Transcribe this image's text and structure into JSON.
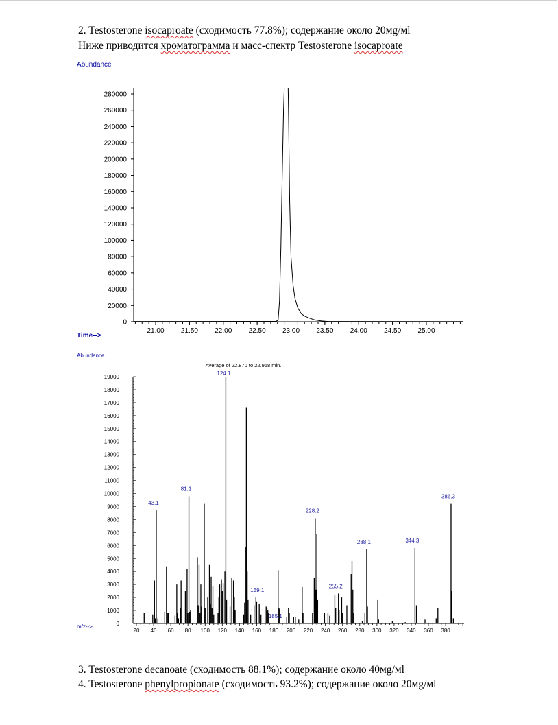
{
  "text": {
    "line1": {
      "a": "2. Testosterone ",
      "b": "isocaproate",
      "c": " (сходимость 77.8%); содержание около 20мg/мl"
    },
    "line2": {
      "a": "Ниже приводится ",
      "b": "хроматограмма",
      "c": " и масс-спектр Testosterone ",
      "d": "isocaproate"
    },
    "line3": "3. Testosterone decanoate (сходимость 88.1%); содержание около 40мg/мl",
    "line4": {
      "a": "4. Testosterone ",
      "b": "phenylpropionate",
      "c": " (сходимость 93.2%); содержание около 20мg/мl"
    }
  },
  "colors": {
    "axis_label": "#0000a0",
    "peak_label": "#2020a0",
    "trace": "#000000",
    "spellcheck": "#dd3333"
  },
  "chart_data": [
    {
      "type": "line",
      "title": "",
      "ylabel": "Abundance",
      "xlabel": "Time-->",
      "xlim": [
        20.68,
        25.55
      ],
      "ylim": [
        0,
        290000
      ],
      "xticks": [
        "21.00",
        "21.50",
        "22.00",
        "22.50",
        "23.00",
        "23.50",
        "24.00",
        "24.50",
        "25.00"
      ],
      "yticks": [
        "0",
        "20000",
        "40000",
        "60000",
        "80000",
        "100000",
        "120000",
        "140000",
        "160000",
        "180000",
        "200000",
        "220000",
        "240000",
        "260000",
        "280000"
      ],
      "grid": false,
      "points": [
        [
          20.68,
          300
        ],
        [
          22.5,
          400
        ],
        [
          22.78,
          500
        ],
        [
          22.81,
          2000
        ],
        [
          22.83,
          25000
        ],
        [
          22.85,
          90000
        ],
        [
          22.87,
          180000
        ],
        [
          22.89,
          260000
        ],
        [
          22.905,
          300000
        ],
        [
          22.955,
          300000
        ],
        [
          22.965,
          250000
        ],
        [
          22.98,
          150000
        ],
        [
          23.0,
          80000
        ],
        [
          23.03,
          45000
        ],
        [
          23.06,
          28000
        ],
        [
          23.1,
          17000
        ],
        [
          23.15,
          10000
        ],
        [
          23.2,
          7000
        ],
        [
          23.27,
          4500
        ],
        [
          23.35,
          2200
        ],
        [
          23.45,
          900
        ],
        [
          23.55,
          300
        ],
        [
          25.55,
          200
        ]
      ]
    },
    {
      "type": "bar",
      "title": "Average of 22.870  to 22.968  min.",
      "ylabel": "Abundance",
      "xlabel": "m/z-->",
      "xlim": [
        20,
        405
      ],
      "ylim": [
        0,
        19000
      ],
      "xticks": [
        "20",
        "40",
        "60",
        "80",
        "100",
        "120",
        "140",
        "160",
        "180",
        "200",
        "220",
        "240",
        "260",
        "280",
        "300",
        "320",
        "340",
        "360",
        "380"
      ],
      "yticks": [
        "0",
        "1000",
        "2000",
        "3000",
        "4000",
        "5000",
        "6000",
        "7000",
        "8000",
        "9000",
        "10000",
        "11000",
        "12000",
        "13000",
        "14000",
        "15000",
        "16000",
        "17000",
        "18000",
        "19000"
      ],
      "peaks": [
        [
          29,
          800
        ],
        [
          39,
          700
        ],
        [
          41,
          3300
        ],
        [
          42,
          400
        ],
        [
          43.1,
          8700
        ],
        [
          45,
          400
        ],
        [
          53,
          900
        ],
        [
          55,
          4400
        ],
        [
          56,
          800
        ],
        [
          57,
          800
        ],
        [
          65,
          600
        ],
        [
          67,
          3000
        ],
        [
          68,
          800
        ],
        [
          69,
          400
        ],
        [
          71,
          1200
        ],
        [
          72,
          3300
        ],
        [
          77,
          2500
        ],
        [
          79,
          4200
        ],
        [
          80,
          800
        ],
        [
          81.1,
          9800
        ],
        [
          82,
          900
        ],
        [
          83,
          1000
        ],
        [
          91,
          5100
        ],
        [
          92,
          1400
        ],
        [
          93,
          4500
        ],
        [
          94,
          800
        ],
        [
          95,
          3000
        ],
        [
          96,
          1300
        ],
        [
          99,
          9200
        ],
        [
          100,
          1200
        ],
        [
          103,
          2000
        ],
        [
          105,
          4500
        ],
        [
          106,
          1500
        ],
        [
          107,
          3600
        ],
        [
          108,
          1200
        ],
        [
          109,
          2900
        ],
        [
          110,
          700
        ],
        [
          115,
          800
        ],
        [
          116,
          2000
        ],
        [
          117,
          3000
        ],
        [
          119,
          3400
        ],
        [
          120,
          2500
        ],
        [
          121,
          3100
        ],
        [
          123,
          4000
        ],
        [
          124.1,
          19000
        ],
        [
          125,
          1800
        ],
        [
          129,
          1300
        ],
        [
          131,
          3500
        ],
        [
          133,
          3300
        ],
        [
          134,
          2000
        ],
        [
          135,
          1000
        ],
        [
          145,
          700
        ],
        [
          146,
          1600
        ],
        [
          147,
          5900
        ],
        [
          148,
          16600
        ],
        [
          149,
          4000
        ],
        [
          150,
          1800
        ],
        [
          153,
          700
        ],
        [
          157,
          1400
        ],
        [
          159.1,
          2000
        ],
        [
          160,
          1700
        ],
        [
          163,
          1500
        ],
        [
          165,
          700
        ],
        [
          171,
          1300
        ],
        [
          172,
          1200
        ],
        [
          173,
          1000
        ],
        [
          174,
          800
        ],
        [
          185,
          4100
        ],
        [
          186,
          1200
        ],
        [
          187,
          1100
        ],
        [
          195,
          500
        ],
        [
          197,
          1200
        ],
        [
          198,
          800
        ],
        [
          203,
          500
        ],
        [
          205,
          500
        ],
        [
          209,
          300
        ],
        [
          213,
          2800
        ],
        [
          214,
          800
        ],
        [
          225,
          800
        ],
        [
          227,
          3500
        ],
        [
          228.2,
          8100
        ],
        [
          229,
          2600
        ],
        [
          230,
          6900
        ],
        [
          231,
          1800
        ],
        [
          239,
          800
        ],
        [
          243,
          800
        ],
        [
          245,
          600
        ],
        [
          251,
          2200
        ],
        [
          252,
          1200
        ],
        [
          255.2,
          2300
        ],
        [
          256,
          1000
        ],
        [
          259,
          2000
        ],
        [
          260,
          800
        ],
        [
          265,
          1400
        ],
        [
          270,
          3800
        ],
        [
          271,
          4800
        ],
        [
          272,
          2600
        ],
        [
          273,
          800
        ],
        [
          283,
          200
        ],
        [
          286,
          800
        ],
        [
          288.1,
          5700
        ],
        [
          289,
          1300
        ],
        [
          301,
          1800
        ],
        [
          302,
          300
        ],
        [
          318,
          200
        ],
        [
          333,
          100
        ],
        [
          344.3,
          5800
        ],
        [
          346,
          1400
        ],
        [
          356,
          300
        ],
        [
          369,
          400
        ],
        [
          371,
          1200
        ],
        [
          386.3,
          9200
        ],
        [
          387,
          2500
        ],
        [
          389,
          400
        ]
      ],
      "labels": [
        {
          "mz": 43.1,
          "text": "43.1"
        },
        {
          "mz": 81.1,
          "text": "81.1"
        },
        {
          "mz": 124.1,
          "text": "124.1"
        },
        {
          "mz": 159.1,
          "text": "159.1"
        },
        {
          "mz": 185.1,
          "text": "185.1"
        },
        {
          "mz": 228.2,
          "text": "228.2"
        },
        {
          "mz": 255.2,
          "text": "255.2"
        },
        {
          "mz": 288.1,
          "text": "288.1"
        },
        {
          "mz": 344.3,
          "text": "344.3"
        },
        {
          "mz": 386.3,
          "text": "386.3"
        }
      ]
    }
  ]
}
